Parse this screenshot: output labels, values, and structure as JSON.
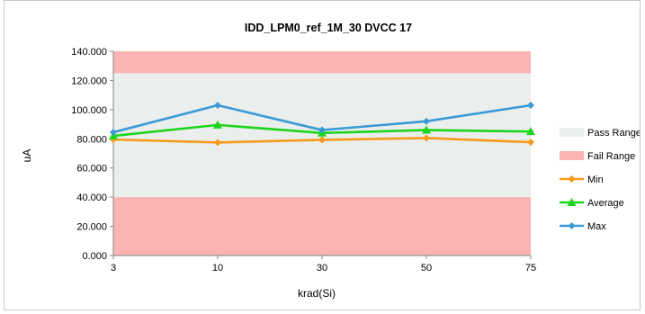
{
  "chart_data": {
    "type": "line",
    "title": "IDD_LPM0_ref_1M_30 DVCC 17",
    "xlabel": "krad(Si)",
    "ylabel": "uA",
    "categories": [
      "3",
      "10",
      "30",
      "50",
      "75"
    ],
    "ylim": [
      0,
      140
    ],
    "yticks": [
      "0.000",
      "20.000",
      "40.000",
      "60.000",
      "80.000",
      "100.000",
      "120.000",
      "140.000"
    ],
    "bands": [
      {
        "name": "Pass Range",
        "from": 40,
        "to": 125,
        "color": "#eaeeec"
      },
      {
        "name": "Fail Range",
        "from": 0,
        "to": 40,
        "color": "#fbb4b1"
      },
      {
        "name": "Fail Range",
        "from": 125,
        "to": 140,
        "color": "#fbb4b1"
      }
    ],
    "series": [
      {
        "name": "Min",
        "values": [
          79.5,
          77.5,
          79.3,
          80.5,
          77.7
        ],
        "color": "#f79a1c",
        "marker": "diamond"
      },
      {
        "name": "Average",
        "values": [
          82.0,
          89.5,
          84.0,
          86.0,
          85.0
        ],
        "color": "#1cd51c",
        "marker": "triangle"
      },
      {
        "name": "Max",
        "values": [
          84.5,
          103.0,
          86.0,
          92.0,
          103.0
        ],
        "color": "#3a9ad6",
        "marker": "diamond"
      }
    ],
    "legend": {
      "position": "right",
      "items": [
        {
          "label": "Pass Range",
          "kind": "band",
          "color": "#eaeeec"
        },
        {
          "label": "Fail Range",
          "kind": "band",
          "color": "#fbb4b1"
        },
        {
          "label": "Min",
          "kind": "line",
          "color": "#f79a1c",
          "marker": "diamond"
        },
        {
          "label": "Average",
          "kind": "line",
          "color": "#1cd51c",
          "marker": "triangle"
        },
        {
          "label": "Max",
          "kind": "line",
          "color": "#3a9ad6",
          "marker": "diamond"
        }
      ]
    },
    "grid": false
  }
}
